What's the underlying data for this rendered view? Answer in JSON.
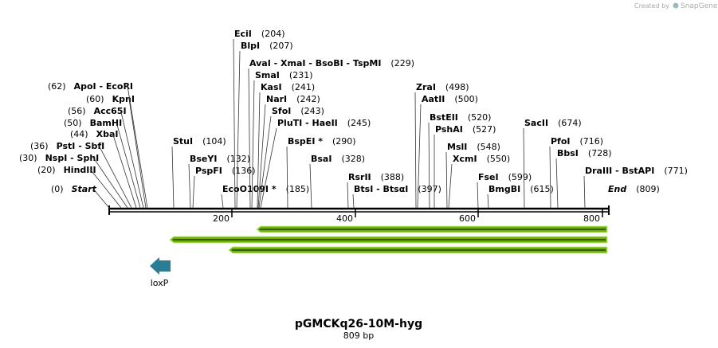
{
  "header": {
    "credit": "Created by",
    "brand": "SnapGene"
  },
  "sites": [
    {
      "name": "Start",
      "position": "(0)"
    },
    {
      "name": "HindIII",
      "position": "(20)"
    },
    {
      "name": "NspI - SphI",
      "position": "(30)"
    },
    {
      "name": "PstI - SbfI",
      "position": "(36)"
    },
    {
      "name": "XbaI",
      "position": "(44)"
    },
    {
      "name": "BamHI",
      "position": "(50)"
    },
    {
      "name": "Acc65I",
      "position": "(56)"
    },
    {
      "name": "KpnI",
      "position": "(60)"
    },
    {
      "name": "ApoI - EcoRI",
      "position": "(62)"
    },
    {
      "name": "StuI",
      "position": "(104)"
    },
    {
      "name": "BseYI",
      "position": "(132)"
    },
    {
      "name": "PspFI",
      "position": "(136)"
    },
    {
      "name": "EcoO109I *",
      "position": "(185)"
    },
    {
      "name": "EciI",
      "position": "(204)"
    },
    {
      "name": "BlpI",
      "position": "(207)"
    },
    {
      "name": "AvaI - XmaI - BsoBI - TspMI",
      "position": "(229)"
    },
    {
      "name": "SmaI",
      "position": "(231)"
    },
    {
      "name": "KasI",
      "position": "(241)"
    },
    {
      "name": "NarI",
      "position": "(242)"
    },
    {
      "name": "SfoI",
      "position": "(243)"
    },
    {
      "name": "PluTI - HaeII",
      "position": "(245)"
    },
    {
      "name": "BspEI *",
      "position": "(290)"
    },
    {
      "name": "BsaI",
      "position": "(328)"
    },
    {
      "name": "RsrII",
      "position": "(388)"
    },
    {
      "name": "BtsI - BtsαI",
      "position": "(397)"
    },
    {
      "name": "ZraI",
      "position": "(498)"
    },
    {
      "name": "AatII",
      "position": "(500)"
    },
    {
      "name": "BstEII",
      "position": "(520)"
    },
    {
      "name": "PshAI",
      "position": "(527)"
    },
    {
      "name": "MslI",
      "position": "(548)"
    },
    {
      "name": "XcmI",
      "position": "(550)"
    },
    {
      "name": "FseI",
      "position": "(599)"
    },
    {
      "name": "BmgBI",
      "position": "(615)"
    },
    {
      "name": "SacII",
      "position": "(674)"
    },
    {
      "name": "PfoI",
      "position": "(716)"
    },
    {
      "name": "BbsI",
      "position": "(728)"
    },
    {
      "name": "DraIII - BstAPI",
      "position": "(771)"
    },
    {
      "name": "End",
      "position": "(809)"
    }
  ],
  "ruler": {
    "ticks": [
      "200",
      "400",
      "600",
      "800"
    ]
  },
  "features": [
    {
      "label": "loxP"
    }
  ],
  "footer": {
    "title": "pGMCKq26-10M-hyg",
    "length": "809 bp"
  }
}
